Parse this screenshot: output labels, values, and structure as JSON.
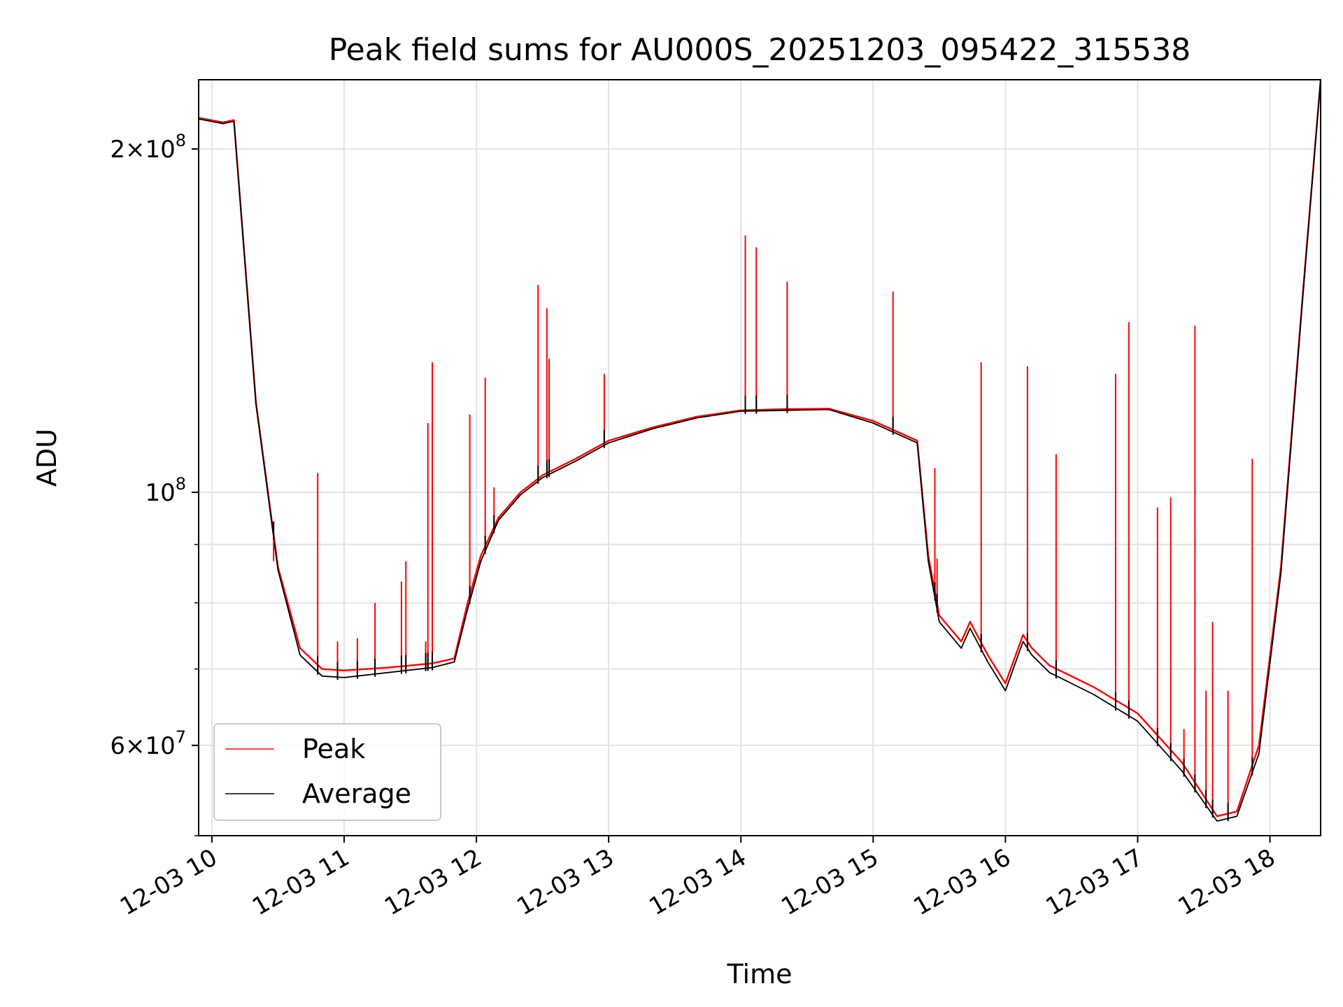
{
  "chart_data": {
    "type": "line",
    "title": "Peak field sums for AU000S_20251203_095422_315538",
    "xlabel": "Time",
    "ylabel": "ADU",
    "y_scale": "log",
    "ylim": [
      50000000,
      230000000
    ],
    "xlim": [
      "2025-12-03 09:54",
      "2025-12-03 18:23"
    ],
    "x_ticks": [
      "12-03 10",
      "12-03 11",
      "12-03 12",
      "12-03 13",
      "12-03 14",
      "12-03 15",
      "12-03 16",
      "12-03 17",
      "12-03 18"
    ],
    "y_tick_labels": [
      {
        "value": 60000000,
        "mantissa": "6",
        "exponent": "7"
      },
      {
        "value": 100000000,
        "mantissa": "",
        "exponent": "8"
      },
      {
        "value": 200000000,
        "mantissa": "2",
        "exponent": "8"
      }
    ],
    "grid": true,
    "legend_position": "lower-left",
    "series": [
      {
        "name": "Peak",
        "color": "#ff0000",
        "x": [
          "2025-12-03 09:54",
          "2025-12-03 10:05",
          "2025-12-03 10:10",
          "2025-12-03 10:20",
          "2025-12-03 10:30",
          "2025-12-03 10:40",
          "2025-12-03 10:50",
          "2025-12-03 11:00",
          "2025-12-03 11:20",
          "2025-12-03 11:40",
          "2025-12-03 11:50",
          "2025-12-03 11:56",
          "2025-12-03 12:02",
          "2025-12-03 12:10",
          "2025-12-03 12:20",
          "2025-12-03 12:30",
          "2025-12-03 12:45",
          "2025-12-03 13:00",
          "2025-12-03 13:20",
          "2025-12-03 13:40",
          "2025-12-03 14:00",
          "2025-12-03 14:20",
          "2025-12-03 14:40",
          "2025-12-03 15:00",
          "2025-12-03 15:20",
          "2025-12-03 15:25",
          "2025-12-03 15:30",
          "2025-12-03 15:40",
          "2025-12-03 15:44",
          "2025-12-03 15:52",
          "2025-12-03 16:00",
          "2025-12-03 16:08",
          "2025-12-03 16:12",
          "2025-12-03 16:20",
          "2025-12-03 16:40",
          "2025-12-03 17:00",
          "2025-12-03 17:20",
          "2025-12-03 17:36",
          "2025-12-03 17:45",
          "2025-12-03 17:55",
          "2025-12-03 18:05",
          "2025-12-03 18:15",
          "2025-12-03 18:23"
        ],
        "values": [
          213000000,
          211000000,
          212000000,
          120000000,
          86000000,
          73000000,
          70000000,
          69800000,
          70200000,
          70800000,
          71500000,
          80000000,
          88000000,
          95000000,
          100000000,
          103500000,
          107000000,
          111000000,
          114000000,
          116500000,
          118000000,
          118300000,
          118400000,
          115500000,
          111000000,
          88000000,
          78000000,
          74000000,
          77000000,
          72000000,
          68000000,
          75000000,
          73000000,
          70500000,
          67500000,
          64000000,
          58000000,
          52000000,
          52500000,
          60000000,
          86000000,
          150000000,
          230000000
        ]
      },
      {
        "name": "Average",
        "color": "#000000",
        "x": [
          "2025-12-03 09:54",
          "2025-12-03 10:05",
          "2025-12-03 10:10",
          "2025-12-03 10:20",
          "2025-12-03 10:30",
          "2025-12-03 10:40",
          "2025-12-03 10:50",
          "2025-12-03 11:00",
          "2025-12-03 11:20",
          "2025-12-03 11:40",
          "2025-12-03 11:50",
          "2025-12-03 11:56",
          "2025-12-03 12:02",
          "2025-12-03 12:10",
          "2025-12-03 12:20",
          "2025-12-03 12:30",
          "2025-12-03 12:45",
          "2025-12-03 13:00",
          "2025-12-03 13:20",
          "2025-12-03 13:40",
          "2025-12-03 14:00",
          "2025-12-03 14:20",
          "2025-12-03 14:40",
          "2025-12-03 15:00",
          "2025-12-03 15:20",
          "2025-12-03 15:25",
          "2025-12-03 15:30",
          "2025-12-03 15:40",
          "2025-12-03 15:44",
          "2025-12-03 15:52",
          "2025-12-03 16:00",
          "2025-12-03 16:08",
          "2025-12-03 16:12",
          "2025-12-03 16:20",
          "2025-12-03 16:40",
          "2025-12-03 17:00",
          "2025-12-03 17:20",
          "2025-12-03 17:36",
          "2025-12-03 17:45",
          "2025-12-03 17:55",
          "2025-12-03 18:05",
          "2025-12-03 18:15",
          "2025-12-03 18:23"
        ],
        "values": [
          212500000,
          210500000,
          211500000,
          119500000,
          85500000,
          72000000,
          69000000,
          68800000,
          69500000,
          70200000,
          71000000,
          79000000,
          87000000,
          94500000,
          99500000,
          103000000,
          106500000,
          110500000,
          113700000,
          116200000,
          117800000,
          118000000,
          118200000,
          115000000,
          110500000,
          87000000,
          77000000,
          73000000,
          76000000,
          71000000,
          67000000,
          74000000,
          72000000,
          69500000,
          66500000,
          63000000,
          57000000,
          51500000,
          52000000,
          59000000,
          85000000,
          149000000,
          230000000
        ]
      }
    ],
    "spikes": [
      {
        "x": "2025-12-03 10:28",
        "peak": 87000000
      },
      {
        "x": "2025-12-03 10:48",
        "peak": 104000000
      },
      {
        "x": "2025-12-03 10:57",
        "peak": 74000000
      },
      {
        "x": "2025-12-03 11:06",
        "peak": 74500000
      },
      {
        "x": "2025-12-03 11:14",
        "peak": 80000000
      },
      {
        "x": "2025-12-03 11:26",
        "peak": 83500000
      },
      {
        "x": "2025-12-03 11:28",
        "peak": 87000000
      },
      {
        "x": "2025-12-03 11:37",
        "peak": 74000000
      },
      {
        "x": "2025-12-03 11:38",
        "peak": 115000000
      },
      {
        "x": "2025-12-03 11:40",
        "peak": 130000000
      },
      {
        "x": "2025-12-03 11:57",
        "peak": 117000000
      },
      {
        "x": "2025-12-03 12:04",
        "peak": 126000000
      },
      {
        "x": "2025-12-03 12:08",
        "peak": 101000000
      },
      {
        "x": "2025-12-03 12:28",
        "peak": 152000000
      },
      {
        "x": "2025-12-03 12:32",
        "peak": 145000000
      },
      {
        "x": "2025-12-03 12:33",
        "peak": 131000000
      },
      {
        "x": "2025-12-03 12:58",
        "peak": 127000000
      },
      {
        "x": "2025-12-03 14:02",
        "peak": 168000000
      },
      {
        "x": "2025-12-03 14:07",
        "peak": 164000000
      },
      {
        "x": "2025-12-03 14:21",
        "peak": 153000000
      },
      {
        "x": "2025-12-03 15:09",
        "peak": 150000000
      },
      {
        "x": "2025-12-03 15:28",
        "peak": 105000000
      },
      {
        "x": "2025-12-03 15:29",
        "peak": 87500000
      },
      {
        "x": "2025-12-03 15:49",
        "peak": 130000000
      },
      {
        "x": "2025-12-03 16:10",
        "peak": 129000000
      },
      {
        "x": "2025-12-03 16:23",
        "peak": 108000000
      },
      {
        "x": "2025-12-03 16:50",
        "peak": 127000000
      },
      {
        "x": "2025-12-03 16:56",
        "peak": 141000000
      },
      {
        "x": "2025-12-03 17:09",
        "peak": 97000000
      },
      {
        "x": "2025-12-03 17:15",
        "peak": 99000000
      },
      {
        "x": "2025-12-03 17:21",
        "peak": 62000000
      },
      {
        "x": "2025-12-03 17:26",
        "peak": 140000000
      },
      {
        "x": "2025-12-03 17:31",
        "peak": 67000000
      },
      {
        "x": "2025-12-03 17:34",
        "peak": 77000000
      },
      {
        "x": "2025-12-03 17:41",
        "peak": 67000000
      },
      {
        "x": "2025-12-03 17:52",
        "peak": 107000000
      }
    ]
  }
}
